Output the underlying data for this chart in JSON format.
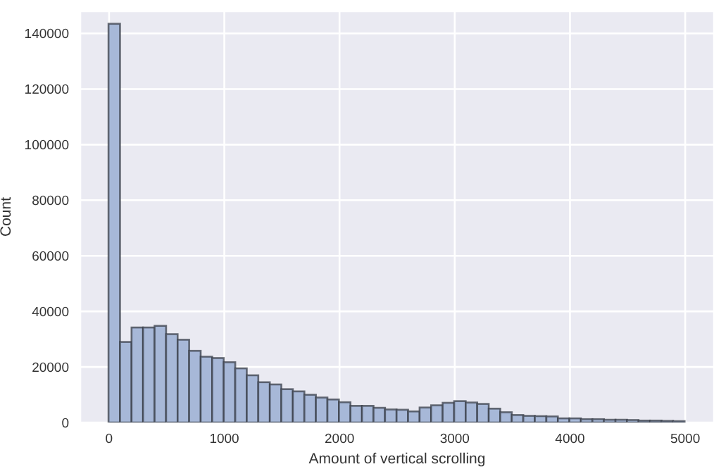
{
  "chart_data": {
    "type": "histogram",
    "xlabel": "Amount of vertical scrolling",
    "ylabel": "Count",
    "color": "#a7b8d8",
    "bins": [
      0,
      100,
      200,
      300,
      400,
      500,
      600,
      700,
      800,
      900,
      1000,
      1100,
      1200,
      1300,
      1400,
      1500,
      1600,
      1700,
      1800,
      1900,
      2000,
      2100,
      2200,
      2300,
      2400,
      2500,
      2600,
      2700,
      2800,
      2900,
      3000,
      3100,
      3200,
      3300,
      3400,
      3500,
      3600,
      3700,
      3800,
      3900,
      4000,
      4100,
      4200,
      4300,
      4400,
      4500,
      4600,
      4700,
      4800,
      4900,
      5000
    ],
    "values": [
      143500,
      29000,
      34200,
      34200,
      34800,
      31800,
      29800,
      25800,
      23700,
      23200,
      21700,
      19500,
      17000,
      14500,
      13700,
      12000,
      11200,
      10000,
      9000,
      8300,
      7300,
      6000,
      6000,
      5300,
      4700,
      4600,
      4000,
      5400,
      6200,
      7100,
      7700,
      7200,
      6700,
      5000,
      3700,
      2700,
      2400,
      2300,
      2200,
      1500,
      1500,
      1200,
      1200,
      1000,
      1000,
      900,
      700,
      700,
      600,
      500
    ],
    "xlim": [
      -250,
      5250
    ],
    "xticks": [
      0,
      1000,
      2000,
      3000,
      4000,
      5000
    ],
    "ylim": [
      0,
      148000
    ],
    "yticks": [
      0,
      20000,
      40000,
      60000,
      80000,
      100000,
      120000,
      140000
    ],
    "grid": true
  }
}
